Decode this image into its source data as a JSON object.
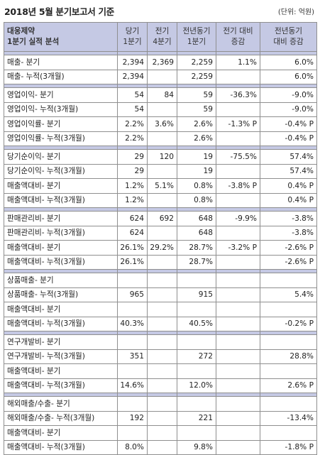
{
  "title": "2018년 5월 분기보고서 기준",
  "unit": "(단위: 억원)",
  "header": {
    "company": "대웅제약",
    "subtitle": "1분기 실적 분석",
    "cols": [
      {
        "l1": "당기",
        "l2": "1분기"
      },
      {
        "l1": "전기",
        "l2": "4분기"
      },
      {
        "l1": "전년동기",
        "l2": "1분기"
      },
      {
        "l1": "전기 대비",
        "l2": "증감"
      },
      {
        "l1": "전년동기",
        "l2": "대비 증감"
      }
    ]
  },
  "groups": [
    {
      "rows": [
        {
          "label": "매출- 분기",
          "v": [
            "2,394",
            "2,369",
            "2,259",
            "1.1%",
            "6.0%"
          ]
        },
        {
          "label": "매출- 누적(3개월)",
          "v": [
            "2,394",
            "",
            "2,259",
            "",
            "6.0%"
          ]
        }
      ]
    },
    {
      "rows": [
        {
          "label": "영업이익- 분기",
          "v": [
            "54",
            "84",
            "59",
            "-36.3%",
            "-9.0%"
          ]
        },
        {
          "label": "영업이익- 누적(3개월)",
          "v": [
            "54",
            "",
            "59",
            "",
            "-9.0%"
          ]
        },
        {
          "label": "영업이익률- 분기",
          "v": [
            "2.2%",
            "3.6%",
            "2.6%",
            "-1.3% P",
            "-0.4% P"
          ]
        },
        {
          "label": "영업이익률- 누적(3개월)",
          "v": [
            "2.2%",
            "",
            "2.6%",
            "",
            "-0.4% P"
          ]
        }
      ]
    },
    {
      "rows": [
        {
          "label": "당기순이익- 분기",
          "v": [
            "29",
            "120",
            "19",
            "-75.5%",
            "57.4%"
          ]
        },
        {
          "label": "당기순이익- 누적(3개월)",
          "v": [
            "29",
            "",
            "19",
            "",
            "57.4%"
          ]
        },
        {
          "label": "매출액대비- 분기",
          "v": [
            "1.2%",
            "5.1%",
            "0.8%",
            "-3.8% P",
            "0.4% P"
          ]
        },
        {
          "label": "매출액대비- 누적(3개월)",
          "v": [
            "1.2%",
            "",
            "0.8%",
            "",
            "0.4% P"
          ]
        }
      ]
    },
    {
      "rows": [
        {
          "label": "판매관리비- 분기",
          "v": [
            "624",
            "692",
            "648",
            "-9.9%",
            "-3.8%"
          ]
        },
        {
          "label": "판매관리비- 누적(3개월)",
          "v": [
            "624",
            "",
            "648",
            "",
            "-3.8%"
          ]
        },
        {
          "label": "매출액대비- 분기",
          "v": [
            "26.1%",
            "29.2%",
            "28.7%",
            "-3.2% P",
            "-2.6% P"
          ]
        },
        {
          "label": "매출액대비- 누적(3개월)",
          "v": [
            "26.1%",
            "",
            "28.7%",
            "",
            "-2.6% P"
          ]
        }
      ]
    },
    {
      "rows": [
        {
          "label": "상품매출- 분기",
          "v": [
            "",
            "",
            "",
            "",
            ""
          ]
        },
        {
          "label": "상품매출- 누적(3개월)",
          "v": [
            "965",
            "",
            "915",
            "",
            "5.4%"
          ]
        },
        {
          "label": "매출액대비- 분기",
          "v": [
            "",
            "",
            "",
            "",
            ""
          ]
        },
        {
          "label": "매출액대비- 누적(3개월)",
          "v": [
            "40.3%",
            "",
            "40.5%",
            "",
            "-0.2% P"
          ]
        }
      ]
    },
    {
      "rows": [
        {
          "label": "연구개발비- 분기",
          "v": [
            "",
            "",
            "",
            "",
            ""
          ]
        },
        {
          "label": "연구개발비- 누적(3개월)",
          "v": [
            "351",
            "",
            "272",
            "",
            "28.8%"
          ]
        },
        {
          "label": "매출액대비- 분기",
          "v": [
            "",
            "",
            "",
            "",
            ""
          ]
        },
        {
          "label": "매출액대비- 누적(3개월)",
          "v": [
            "14.6%",
            "",
            "12.0%",
            "",
            "2.6% P"
          ]
        }
      ]
    },
    {
      "rows": [
        {
          "label": "해외매출/수출- 분기",
          "v": [
            "",
            "",
            "",
            "",
            ""
          ]
        },
        {
          "label": "해외매출/수출- 누적(3개월)",
          "v": [
            "192",
            "",
            "221",
            "",
            "-13.4%"
          ]
        },
        {
          "label": "매출액대비- 분기",
          "v": [
            "",
            "",
            "",
            "",
            ""
          ]
        },
        {
          "label": "매출액대비- 누적(3개월)",
          "v": [
            "8.0%",
            "",
            "9.8%",
            "",
            "-1.8% P"
          ]
        }
      ]
    }
  ]
}
